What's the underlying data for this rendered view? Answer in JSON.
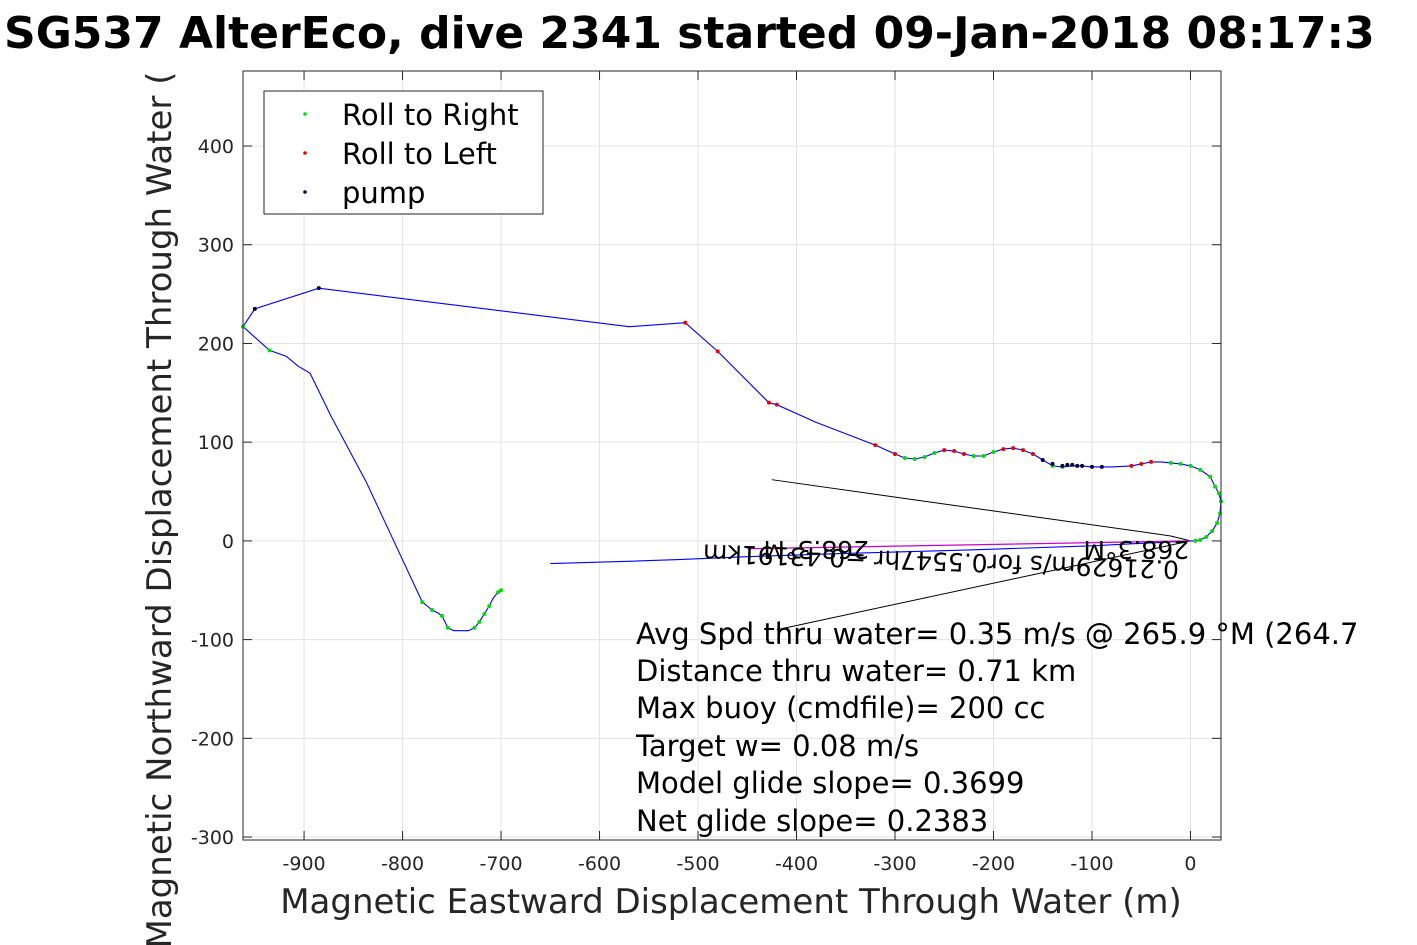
{
  "chart_data": {
    "type": "scatter",
    "title": "SG537 AlterEco, dive 2341 started 09-Jan-2018 08:17:3",
    "xlabel": "Magnetic Eastward Displacement Through Water (m)",
    "ylabel": "Magnetic Northward Displacement Through Water (",
    "xlim": [
      -962,
      31
    ],
    "ylim": [
      -303,
      476
    ],
    "xticks": [
      -900,
      -800,
      -700,
      -600,
      -500,
      -400,
      -300,
      -200,
      -100,
      0
    ],
    "yticks": [
      -300,
      -200,
      -100,
      0,
      100,
      200,
      300,
      400
    ],
    "grid": true,
    "legend_position": "top-left",
    "colors": {
      "track": "#0000ff",
      "roll_right": "#00dd00",
      "roll_left": "#ee0000",
      "pump": "#000033",
      "current_line": "#cc00cc",
      "heading_line": "#000000"
    },
    "legend": [
      {
        "label": "Roll to Right",
        "color": "#00dd00"
      },
      {
        "label": "Roll to Left",
        "color": "#ee0000"
      },
      {
        "label": "pump",
        "color": "#000033"
      }
    ],
    "track": {
      "x": [
        -700,
        -703,
        -708,
        -712,
        -717,
        -722,
        -727,
        -733,
        -748,
        -754,
        -757,
        -760,
        -764,
        -770,
        -775,
        -780,
        -837,
        -873,
        -894,
        -906,
        -918,
        -935,
        -962,
        -950,
        -885,
        -570,
        -513,
        -480,
        -428,
        -420,
        -380,
        -320,
        -300,
        -290,
        -280,
        -270,
        -260,
        -250,
        -240,
        -230,
        -220,
        -210,
        -200,
        -190,
        -180,
        -170,
        -160,
        -150,
        -140,
        -130,
        -120,
        -110,
        -100,
        -80,
        -60,
        -50,
        -40,
        -30,
        -20,
        -10,
        0,
        10,
        20,
        25,
        29,
        31,
        30,
        27,
        22,
        16,
        10,
        5,
        0,
        -100,
        -220,
        -360,
        -450,
        -520,
        -580,
        -650
      ],
      "y": [
        -50,
        -52,
        -58,
        -66,
        -74,
        -82,
        -88,
        -91,
        -91,
        -88,
        -82,
        -76,
        -73,
        -70,
        -66,
        -62,
        60,
        127,
        170,
        177,
        187,
        193,
        217,
        235,
        256,
        217,
        221,
        192,
        140,
        138,
        120,
        97,
        88,
        84,
        83,
        85,
        89,
        92,
        91,
        88,
        86,
        86,
        90,
        93,
        94,
        92,
        88,
        82,
        76,
        75,
        76,
        76,
        75,
        75,
        76,
        78,
        80,
        80,
        79,
        78,
        76,
        72,
        65,
        55,
        48,
        40,
        28,
        18,
        10,
        4,
        1,
        0,
        0,
        -5,
        -9,
        -13,
        -16,
        -19,
        -21,
        -23
      ],
      "segments": [
        [
          0,
          72
        ],
        [
          72,
          79
        ]
      ]
    },
    "roll_right": {
      "x": [
        -700,
        -703,
        -712,
        -717,
        -722,
        -727,
        -754,
        -760,
        -770,
        -780,
        -935,
        -962,
        -300,
        -290,
        -280,
        -270,
        -260,
        -220,
        -210,
        -200,
        -140,
        -130,
        -20,
        -10,
        0,
        10,
        20,
        25,
        29,
        31,
        30,
        27,
        22,
        16,
        10,
        5
      ],
      "y": [
        -50,
        -52,
        -66,
        -74,
        -82,
        -88,
        -88,
        -76,
        -70,
        -62,
        193,
        217,
        88,
        84,
        83,
        85,
        89,
        86,
        86,
        90,
        76,
        75,
        79,
        78,
        76,
        72,
        65,
        55,
        48,
        40,
        28,
        18,
        10,
        4,
        1,
        0
      ]
    },
    "roll_left": {
      "x": [
        -513,
        -480,
        -428,
        -420,
        -320,
        -300,
        -250,
        -240,
        -230,
        -190,
        -180,
        -170,
        -160,
        -60,
        -50,
        -40
      ],
      "y": [
        221,
        192,
        140,
        138,
        97,
        88,
        92,
        91,
        88,
        93,
        94,
        92,
        88,
        76,
        78,
        80
      ]
    },
    "pump": {
      "x": [
        -950,
        -885,
        -150,
        -140,
        -130,
        -125,
        -120,
        -115,
        -110,
        -100,
        -90
      ],
      "y": [
        235,
        256,
        82,
        78,
        76,
        77,
        77,
        76,
        76,
        75,
        75
      ]
    },
    "current_vector": {
      "x": [
        0,
        -450
      ],
      "y": [
        0,
        -8
      ]
    },
    "heading_lines": [
      {
        "x": [
          -425,
          -20
        ],
        "y": [
          62,
          5
        ]
      },
      {
        "x": [
          -20,
          0
        ],
        "y": [
          5,
          0
        ]
      },
      {
        "x": [
          0,
          -420
        ],
        "y": [
          0,
          -90
        ]
      }
    ],
    "annotations": [
      {
        "text": "268.3°M",
        "x": -55,
        "y": 0,
        "rotate": 180
      },
      {
        "text": "268.3°M",
        "x": -380,
        "y": 0,
        "rotate": 180
      },
      {
        "text": "0.21629m/s for0.5547hr =0.43191km",
        "x": -253,
        "y": -12,
        "rotate": 182
      }
    ],
    "stats": [
      "Avg Spd thru water=  0.35 m/s @ 265.9 °M (264.7",
      "Distance thru water=  0.71 km",
      "Max buoy (cmdfile)= 200 cc",
      "Target w= 0.08 m/s",
      "Model glide slope= 0.3699",
      "Net glide slope= 0.2383"
    ]
  }
}
